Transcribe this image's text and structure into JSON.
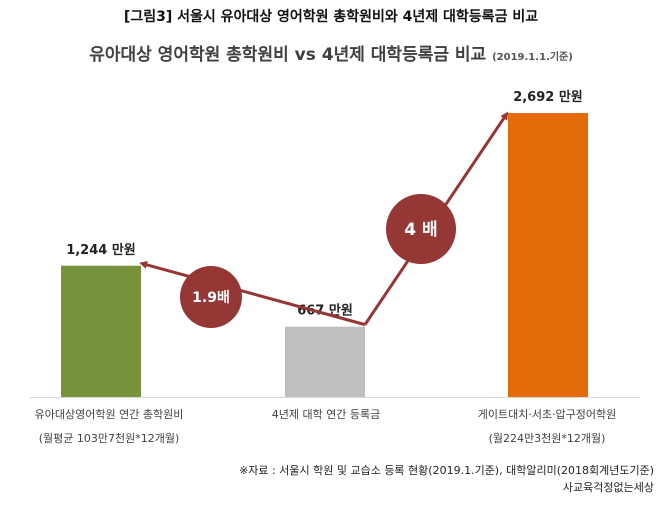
{
  "figure_title": "[그림3] 서울시 유아대상 영어학원 총학원비와 4년제 대학등록금 비교",
  "chart_data": {
    "type": "bar",
    "title": "유아대상 영어학원 총학원비 vs 4년제 대학등록금 비교",
    "subtitle": "(2019.1.1.기준)",
    "categories": [
      {
        "line1": "유아대상영어학원 연간 총학원비",
        "line2": "(월평균 103만7천원*12개월)"
      },
      {
        "line1": "4년제 대학 연간 등록금",
        "line2": ""
      },
      {
        "line1": "게이트대치·서초·압구정어학원",
        "line2": "(월224만3천원*12개월)"
      }
    ],
    "values": [
      1244,
      667,
      2692
    ],
    "value_labels": [
      "1,244 만원",
      "667 만원",
      "2,692 만원"
    ],
    "unit": "만원",
    "bar_colors": [
      "#76923c",
      "#bfbfbf",
      "#e36c09"
    ],
    "ylim": [
      0,
      2692
    ],
    "grid": false,
    "annotations": [
      {
        "text": "1.9배",
        "color": "#953735"
      },
      {
        "text": "4 배",
        "color": "#953735"
      }
    ]
  },
  "source_line1": "※자료 : 서울시 학원 및 교습소 등록 현황(2019.1.기준), 대학알리미(2018회계년도기준)",
  "source_line2": "사교육걱정없는세상"
}
